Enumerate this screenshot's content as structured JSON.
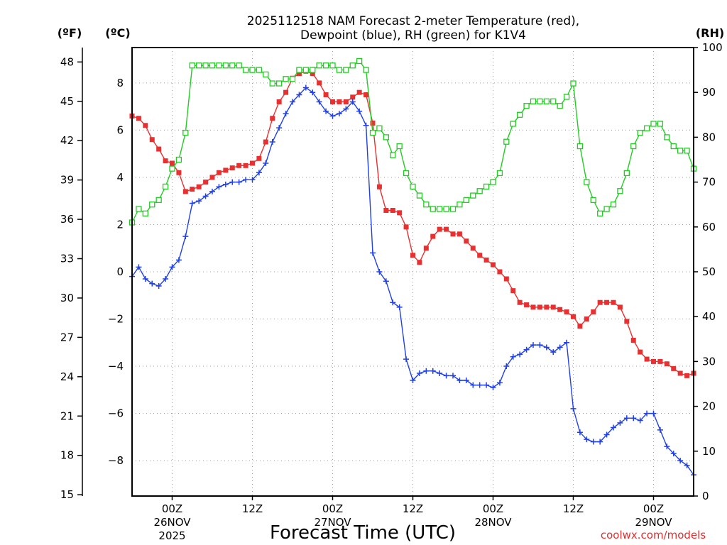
{
  "chart_data": {
    "type": "line",
    "title": "2025112518 NAM Forecast 2-meter Temperature (red),",
    "subtitle": "Dewpoint (blue), RH (green) for K1V4",
    "xlabel": "Forecast Time (UTC)",
    "credit": "coolwx.com/models",
    "units": {
      "fahrenheit": "(ºF)",
      "celsius": "(ºC)",
      "rh": "(RH)"
    },
    "x_hours": {
      "min": 18,
      "max": 102,
      "step": 1
    },
    "x_ticks": [
      {
        "hour": 24,
        "label": "00Z",
        "date": "26NOV",
        "year": "2025"
      },
      {
        "hour": 36,
        "label": "12Z",
        "date": "",
        "year": ""
      },
      {
        "hour": 48,
        "label": "00Z",
        "date": "27NOV",
        "year": ""
      },
      {
        "hour": 60,
        "label": "12Z",
        "date": "",
        "year": ""
      },
      {
        "hour": 72,
        "label": "00Z",
        "date": "28NOV",
        "year": ""
      },
      {
        "hour": 84,
        "label": "12Z",
        "date": "",
        "year": ""
      },
      {
        "hour": 96,
        "label": "00Z",
        "date": "29NOV",
        "year": ""
      }
    ],
    "y_celsius": {
      "min": -9.5,
      "max": 9.5,
      "ticks": [
        "8",
        "6",
        "4",
        "2",
        "0",
        "−2",
        "−4",
        "−6",
        "−8"
      ]
    },
    "y_fahrenheit": {
      "ticks": [
        "48",
        "45",
        "42",
        "39",
        "36",
        "33",
        "30",
        "27",
        "24",
        "21",
        "18",
        "15"
      ]
    },
    "y_rh": {
      "min": 0,
      "max": 100,
      "ticks": [
        "100",
        "90",
        "80",
        "70",
        "60",
        "50",
        "40",
        "30",
        "20",
        "10",
        "0"
      ]
    },
    "series": [
      {
        "name": "Temperature",
        "unit": "C",
        "color": "#e83030",
        "marker": "filled-square",
        "values": [
          6.6,
          6.5,
          6.2,
          5.6,
          5.2,
          4.7,
          4.6,
          4.2,
          3.4,
          3.5,
          3.6,
          3.8,
          4.0,
          4.2,
          4.3,
          4.4,
          4.5,
          4.5,
          4.6,
          4.8,
          5.5,
          6.5,
          7.2,
          7.6,
          8.2,
          8.4,
          8.5,
          8.4,
          8.0,
          7.5,
          7.2,
          7.2,
          7.2,
          7.4,
          7.6,
          7.5,
          6.3,
          3.6,
          2.6,
          2.6,
          2.5,
          1.9,
          0.7,
          0.4,
          1.0,
          1.5,
          1.8,
          1.8,
          1.6,
          1.6,
          1.3,
          1.0,
          0.7,
          0.5,
          0.3,
          0.0,
          -0.3,
          -0.8,
          -1.3,
          -1.4,
          -1.5,
          -1.5,
          -1.5,
          -1.5,
          -1.6,
          -1.7,
          -1.9,
          -2.3,
          -2.0,
          -1.7,
          -1.3,
          -1.3,
          -1.3,
          -1.5,
          -2.1,
          -2.9,
          -3.4,
          -3.7,
          -3.8,
          -3.8,
          -3.9,
          -4.1,
          -4.3,
          -4.4,
          -4.3
        ]
      },
      {
        "name": "Dewpoint",
        "unit": "C",
        "color": "#2040e8",
        "marker": "plus",
        "values": [
          -0.2,
          0.2,
          -0.3,
          -0.5,
          -0.6,
          -0.3,
          0.2,
          0.5,
          1.5,
          2.9,
          3.0,
          3.2,
          3.4,
          3.6,
          3.7,
          3.8,
          3.8,
          3.9,
          3.9,
          4.2,
          4.6,
          5.5,
          6.1,
          6.7,
          7.2,
          7.5,
          7.8,
          7.6,
          7.2,
          6.8,
          6.6,
          6.7,
          6.9,
          7.2,
          6.8,
          6.2,
          0.8,
          0.0,
          -0.4,
          -1.3,
          -1.5,
          -3.7,
          -4.6,
          -4.3,
          -4.2,
          -4.2,
          -4.3,
          -4.4,
          -4.4,
          -4.6,
          -4.6,
          -4.8,
          -4.8,
          -4.8,
          -4.9,
          -4.7,
          -4.0,
          -3.6,
          -3.5,
          -3.3,
          -3.1,
          -3.1,
          -3.2,
          -3.4,
          -3.2,
          -3.0,
          -5.8,
          -6.8,
          -7.1,
          -7.2,
          -7.2,
          -6.9,
          -6.6,
          -6.4,
          -6.2,
          -6.2,
          -6.3,
          -6.0,
          -6.0,
          -6.7,
          -7.4,
          -7.7,
          -8.0,
          -8.2,
          -8.6
        ]
      },
      {
        "name": "RH",
        "unit": "%",
        "color": "#22cc22",
        "marker": "open-square",
        "values": [
          61,
          64,
          63,
          65,
          66,
          69,
          73,
          75,
          81,
          96,
          96,
          96,
          96,
          96,
          96,
          96,
          96,
          95,
          95,
          95,
          94,
          92,
          92,
          93,
          93,
          95,
          95,
          95,
          96,
          96,
          96,
          95,
          95,
          96,
          97,
          95,
          81,
          82,
          80,
          76,
          78,
          72,
          69,
          67,
          65,
          64,
          64,
          64,
          64,
          65,
          66,
          67,
          68,
          69,
          70,
          72,
          79,
          83,
          85,
          87,
          88,
          88,
          88,
          88,
          87,
          89,
          92,
          78,
          70,
          66,
          63,
          64,
          65,
          68,
          72,
          78,
          81,
          82,
          83,
          83,
          80,
          78,
          77,
          77,
          73
        ]
      }
    ]
  }
}
